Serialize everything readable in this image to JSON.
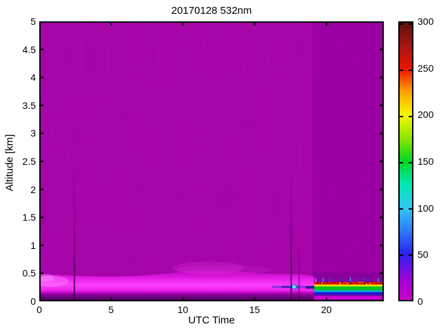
{
  "chart_data": {
    "type": "heatmap",
    "title": "20170128 532nm",
    "xlabel": "UTC Time",
    "ylabel": "Altitude [km]",
    "xlim": [
      0,
      24
    ],
    "ylim": [
      0,
      5
    ],
    "xticks": [
      0,
      5,
      10,
      15,
      20
    ],
    "yticks": [
      0,
      0.5,
      1,
      1.5,
      2,
      2.5,
      3,
      3.5,
      4,
      4.5,
      5
    ],
    "grid": false,
    "legend": "none",
    "colorbar": {
      "position": "right",
      "min": 0,
      "max": 300,
      "ticks": [
        0,
        50,
        100,
        150,
        200,
        250,
        300
      ],
      "stops": [
        {
          "value": 0,
          "color": "#c800c8"
        },
        {
          "value": 20,
          "color": "#a500d8"
        },
        {
          "value": 35,
          "color": "#6a10e6"
        },
        {
          "value": 50,
          "color": "#2822f0"
        },
        {
          "value": 75,
          "color": "#2e7bff"
        },
        {
          "value": 100,
          "color": "#2fc9f0"
        },
        {
          "value": 125,
          "color": "#00e8b4"
        },
        {
          "value": 150,
          "color": "#00d822"
        },
        {
          "value": 175,
          "color": "#8ce600"
        },
        {
          "value": 200,
          "color": "#f8f800"
        },
        {
          "value": 225,
          "color": "#ffa400"
        },
        {
          "value": 250,
          "color": "#ee1400"
        },
        {
          "value": 275,
          "color": "#a81414"
        },
        {
          "value": 300,
          "color": "#5c1410"
        }
      ]
    },
    "background_value": 5,
    "features": {
      "noisy_background_color": "#a300a5",
      "boundary_layer": {
        "description": "bright magenta near-surface band, value ~15-30",
        "top_km_profile": [
          [
            0,
            0.5
          ],
          [
            1.5,
            0.47
          ],
          [
            3,
            0.45
          ],
          [
            5,
            0.44
          ],
          [
            7,
            0.455
          ],
          [
            9,
            0.5
          ],
          [
            10.5,
            0.55
          ],
          [
            12,
            0.575
          ],
          [
            13.5,
            0.545
          ],
          [
            15,
            0.505
          ],
          [
            16.5,
            0.485
          ],
          [
            18,
            0.49
          ],
          [
            19,
            0.46
          ],
          [
            19.35,
            0.42
          ]
        ]
      },
      "faint_arch": {
        "utc": [
          9.5,
          14.5
        ],
        "alt_km": [
          0.52,
          0.64
        ]
      },
      "surface_dark_strip": {
        "utc": [
          0,
          19.2
        ],
        "alt_km": [
          0,
          0.16
        ],
        "approx_value": 0
      },
      "data_gap_streaks_utc": [
        2.45,
        17.55,
        18.1
      ],
      "blue_streak": {
        "utc": [
          16.2,
          19.3
        ],
        "alt_km": [
          0.24,
          0.29
        ],
        "approx_value": 55
      },
      "cyan_spot": {
        "utc": 17.75,
        "alt_km": 0.26,
        "approx_value": 110
      },
      "smooth_sector": {
        "utc": [
          19.0,
          24.0
        ]
      },
      "aerosol_layer": {
        "utc": [
          19.25,
          24.0
        ],
        "alt_km": [
          0.12,
          0.34
        ],
        "description": "strong thin layer: red/dark-red top ~0.31 km, yellow, green core, cyan, blue base; peak ~250-300",
        "peak_value": 290
      }
    }
  }
}
